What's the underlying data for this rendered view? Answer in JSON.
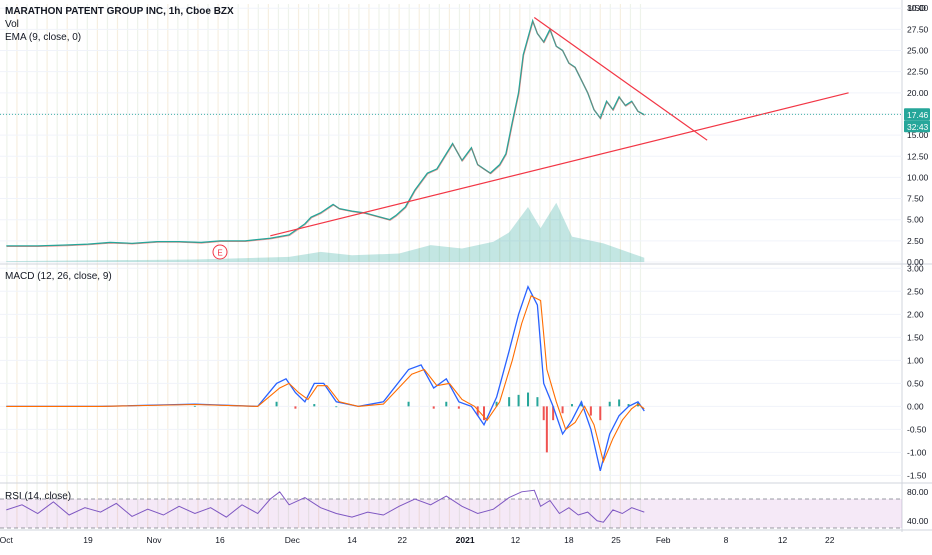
{
  "chart_data": {
    "type": "line",
    "title": "MARATHON PATENT GROUP INC, 1h, Cboe BZX",
    "panes": [
      {
        "name": "price",
        "indicators": [
          "Vol",
          "EMA (9, close, 0)"
        ],
        "y_axis": {
          "label": "USD",
          "ticks": [
            "0.00",
            "2.50",
            "5.00",
            "7.50",
            "10.00",
            "12.50",
            "15.00",
            "17.50",
            "20.00",
            "22.50",
            "25.00",
            "27.50",
            "30.00"
          ],
          "range": [
            0,
            30.5
          ]
        },
        "last_price": "17.46",
        "countdown": "32:43",
        "price_path": [
          [
            0,
            1.9
          ],
          [
            10,
            1.9
          ],
          [
            19,
            2.0
          ],
          [
            26,
            2.1
          ],
          [
            33,
            2.3
          ],
          [
            40,
            2.2
          ],
          [
            48,
            2.4
          ],
          [
            55,
            2.4
          ],
          [
            62,
            2.3
          ],
          [
            68,
            2.5
          ],
          [
            76,
            2.5
          ],
          [
            84,
            2.8
          ],
          [
            90,
            3.2
          ],
          [
            95,
            4.5
          ],
          [
            97,
            5.3
          ],
          [
            100,
            5.8
          ],
          [
            104,
            6.8
          ],
          [
            106,
            6.3
          ],
          [
            110,
            6.0
          ],
          [
            114,
            5.8
          ],
          [
            118,
            5.4
          ],
          [
            122,
            5.0
          ],
          [
            124,
            5.5
          ],
          [
            127,
            6.5
          ],
          [
            130,
            8.5
          ],
          [
            134,
            10.5
          ],
          [
            137,
            11.0
          ],
          [
            140,
            12.8
          ],
          [
            142,
            14.0
          ],
          [
            145,
            12.0
          ],
          [
            148,
            13.5
          ],
          [
            150,
            11.5
          ],
          [
            152,
            11.0
          ],
          [
            154,
            10.5
          ],
          [
            157,
            11.5
          ],
          [
            159,
            12.8
          ],
          [
            161,
            16.5
          ],
          [
            163,
            20.0
          ],
          [
            164.5,
            24.5
          ],
          [
            166,
            26.5
          ],
          [
            167.5,
            28.5
          ],
          [
            169,
            27.0
          ],
          [
            171,
            26.0
          ],
          [
            173,
            27.5
          ],
          [
            175,
            25.5
          ],
          [
            177,
            25.0
          ],
          [
            179,
            23.5
          ],
          [
            181,
            23.0
          ],
          [
            183,
            21.5
          ],
          [
            185,
            20.0
          ],
          [
            187,
            18.0
          ],
          [
            189,
            17.0
          ],
          [
            191,
            19.0
          ],
          [
            193,
            18.0
          ],
          [
            195,
            19.5
          ],
          [
            197,
            18.5
          ],
          [
            199,
            19.0
          ],
          [
            201,
            17.8
          ],
          [
            203,
            17.4
          ]
        ],
        "volume_path": [
          [
            0,
            0.1
          ],
          [
            30,
            0.2
          ],
          [
            60,
            0.3
          ],
          [
            90,
            0.6
          ],
          [
            100,
            1.2
          ],
          [
            110,
            0.8
          ],
          [
            125,
            1.0
          ],
          [
            135,
            2.0
          ],
          [
            145,
            1.6
          ],
          [
            155,
            2.4
          ],
          [
            160,
            3.5
          ],
          [
            166,
            6.5
          ],
          [
            170,
            4.0
          ],
          [
            175,
            7.0
          ],
          [
            180,
            3.0
          ],
          [
            190,
            2.2
          ],
          [
            203,
            0.5
          ]
        ],
        "trendlines": [
          {
            "from": [
              84,
              3.1
            ],
            "to": [
              268,
              20.0
            ]
          },
          {
            "from": [
              168,
              28.9
            ],
            "to": [
              223,
              14.4
            ]
          }
        ],
        "event_marker": {
          "x": 68,
          "label": "E"
        }
      },
      {
        "name": "MACD (12, 26, close, 9)",
        "y_axis": {
          "ticks": [
            "3.00",
            "2.50",
            "2.00",
            "1.50",
            "1.00",
            "0.50",
            "0.00",
            "-0.50",
            "-1.00",
            "-1.50"
          ],
          "range": [
            -1.6,
            3.05
          ]
        },
        "macd_line": [
          [
            0,
            0.0
          ],
          [
            30,
            0.0
          ],
          [
            60,
            0.05
          ],
          [
            80,
            0.0
          ],
          [
            86,
            0.5
          ],
          [
            89,
            0.6
          ],
          [
            92,
            0.3
          ],
          [
            95,
            0.1
          ],
          [
            98,
            0.5
          ],
          [
            101,
            0.5
          ],
          [
            105,
            0.1
          ],
          [
            112,
            0.0
          ],
          [
            120,
            0.1
          ],
          [
            128,
            0.8
          ],
          [
            132,
            0.9
          ],
          [
            136,
            0.4
          ],
          [
            140,
            0.6
          ],
          [
            144,
            0.1
          ],
          [
            148,
            0.0
          ],
          [
            152,
            -0.4
          ],
          [
            156,
            0.2
          ],
          [
            160,
            1.2
          ],
          [
            163,
            2.0
          ],
          [
            166,
            2.6
          ],
          [
            169,
            2.2
          ],
          [
            171,
            0.5
          ],
          [
            174,
            0.0
          ],
          [
            177,
            -0.6
          ],
          [
            180,
            -0.3
          ],
          [
            183,
            0.1
          ],
          [
            186,
            -0.5
          ],
          [
            189,
            -1.4
          ],
          [
            192,
            -0.6
          ],
          [
            195,
            -0.2
          ],
          [
            198,
            0.0
          ],
          [
            201,
            0.1
          ],
          [
            203,
            -0.1
          ]
        ],
        "signal_line": [
          [
            0,
            0.0
          ],
          [
            30,
            0.0
          ],
          [
            60,
            0.04
          ],
          [
            80,
            0.0
          ],
          [
            87,
            0.4
          ],
          [
            90,
            0.5
          ],
          [
            93,
            0.3
          ],
          [
            96,
            0.15
          ],
          [
            99,
            0.45
          ],
          [
            102,
            0.45
          ],
          [
            106,
            0.1
          ],
          [
            112,
            0.0
          ],
          [
            120,
            0.05
          ],
          [
            129,
            0.7
          ],
          [
            133,
            0.8
          ],
          [
            137,
            0.45
          ],
          [
            141,
            0.5
          ],
          [
            145,
            0.15
          ],
          [
            149,
            0.0
          ],
          [
            153,
            -0.3
          ],
          [
            157,
            0.1
          ],
          [
            161,
            1.0
          ],
          [
            164,
            1.8
          ],
          [
            167,
            2.4
          ],
          [
            170,
            2.3
          ],
          [
            172,
            0.8
          ],
          [
            175,
            0.1
          ],
          [
            178,
            -0.5
          ],
          [
            181,
            -0.35
          ],
          [
            184,
            0.0
          ],
          [
            187,
            -0.4
          ],
          [
            190,
            -1.2
          ],
          [
            193,
            -0.7
          ],
          [
            196,
            -0.3
          ],
          [
            199,
            -0.05
          ],
          [
            201,
            0.05
          ],
          [
            203,
            -0.05
          ]
        ],
        "histogram": [
          [
            30,
            0.01
          ],
          [
            60,
            0.01
          ],
          [
            86,
            0.1
          ],
          [
            92,
            -0.05
          ],
          [
            98,
            0.05
          ],
          [
            105,
            0.0
          ],
          [
            128,
            0.1
          ],
          [
            136,
            -0.05
          ],
          [
            140,
            0.1
          ],
          [
            144,
            -0.05
          ],
          [
            150,
            -0.2
          ],
          [
            152,
            -0.3
          ],
          [
            156,
            0.1
          ],
          [
            160,
            0.2
          ],
          [
            163,
            0.25
          ],
          [
            166,
            0.3
          ],
          [
            169,
            0.2
          ],
          [
            171,
            -0.3
          ],
          [
            172,
            -1.0
          ],
          [
            174,
            -0.3
          ],
          [
            177,
            -0.15
          ],
          [
            180,
            0.05
          ],
          [
            183,
            0.1
          ],
          [
            186,
            -0.2
          ],
          [
            189,
            -0.3
          ],
          [
            192,
            0.1
          ],
          [
            195,
            0.15
          ],
          [
            198,
            0.05
          ],
          [
            201,
            0.08
          ]
        ]
      },
      {
        "name": "RSI (14, close)",
        "y_axis": {
          "ticks": [
            "80.00",
            "40.00"
          ],
          "range": [
            30,
            88
          ]
        },
        "bands": [
          70,
          30
        ],
        "rsi_line": [
          [
            0,
            55
          ],
          [
            5,
            62
          ],
          [
            10,
            50
          ],
          [
            15,
            66
          ],
          [
            20,
            48
          ],
          [
            25,
            58
          ],
          [
            30,
            52
          ],
          [
            35,
            64
          ],
          [
            40,
            46
          ],
          [
            45,
            56
          ],
          [
            50,
            48
          ],
          [
            55,
            60
          ],
          [
            60,
            50
          ],
          [
            65,
            58
          ],
          [
            70,
            45
          ],
          [
            75,
            62
          ],
          [
            80,
            50
          ],
          [
            84,
            70
          ],
          [
            87,
            80
          ],
          [
            90,
            62
          ],
          [
            95,
            72
          ],
          [
            100,
            58
          ],
          [
            105,
            50
          ],
          [
            110,
            45
          ],
          [
            115,
            52
          ],
          [
            120,
            48
          ],
          [
            125,
            60
          ],
          [
            130,
            70
          ],
          [
            135,
            62
          ],
          [
            140,
            74
          ],
          [
            145,
            60
          ],
          [
            150,
            50
          ],
          [
            155,
            56
          ],
          [
            160,
            72
          ],
          [
            164,
            80
          ],
          [
            168,
            82
          ],
          [
            170,
            60
          ],
          [
            173,
            68
          ],
          [
            176,
            50
          ],
          [
            179,
            58
          ],
          [
            182,
            48
          ],
          [
            185,
            52
          ],
          [
            188,
            40
          ],
          [
            190,
            38
          ],
          [
            193,
            55
          ],
          [
            196,
            50
          ],
          [
            199,
            58
          ],
          [
            203,
            52
          ]
        ]
      }
    ],
    "x_axis": {
      "ticks": [
        {
          "label": "Oct",
          "x": 0
        },
        {
          "label": "19",
          "x": 26
        },
        {
          "label": "Nov",
          "x": 47
        },
        {
          "label": "16",
          "x": 68
        },
        {
          "label": "Dec",
          "x": 91
        },
        {
          "label": "14",
          "x": 110
        },
        {
          "label": "22",
          "x": 126
        },
        {
          "label": "2021",
          "x": 146
        },
        {
          "label": "12",
          "x": 162
        },
        {
          "label": "18",
          "x": 179
        },
        {
          "label": "25",
          "x": 194
        },
        {
          "label": "Feb",
          "x": 209
        },
        {
          "label": "8",
          "x": 229
        },
        {
          "label": "12",
          "x": 247
        },
        {
          "label": "22",
          "x": 262
        }
      ],
      "range": [
        -2,
        285
      ]
    }
  }
}
